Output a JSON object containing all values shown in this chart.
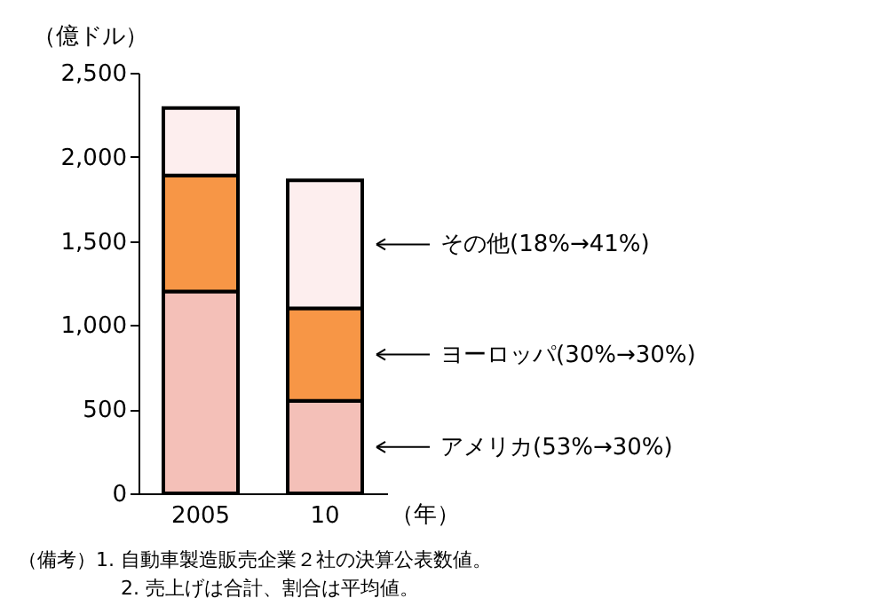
{
  "chart_data": {
    "type": "bar",
    "stacked": true,
    "ylabel": "（億ドル）",
    "xlabel": "（年）",
    "categories": [
      "2005",
      "10"
    ],
    "ylim": [
      0,
      2500
    ],
    "yticks": [
      0,
      500,
      {
        "value": 1000,
        "label": "1,000"
      },
      {
        "value": 1500,
        "label": "1,500"
      },
      {
        "value": 2000,
        "label": "2,000"
      },
      {
        "value": 2500,
        "label": "2,500"
      }
    ],
    "series": [
      {
        "name": "アメリカ(53%→30%)",
        "color": "#f4c0b8",
        "values": [
          1200,
          550
        ]
      },
      {
        "name": "ヨーロッパ(30%→30%)",
        "color": "#f79646",
        "values": [
          690,
          550
        ]
      },
      {
        "name": "その他(18%→41%)",
        "color": "#fdeeee",
        "values": [
          400,
          760
        ]
      }
    ],
    "annotations": [
      "（備考）1.  自動車製造販売企業２社の決算公表数値。",
      "2.  売上げは合計、割合は平均値。"
    ],
    "grid": false,
    "legend": "right"
  }
}
